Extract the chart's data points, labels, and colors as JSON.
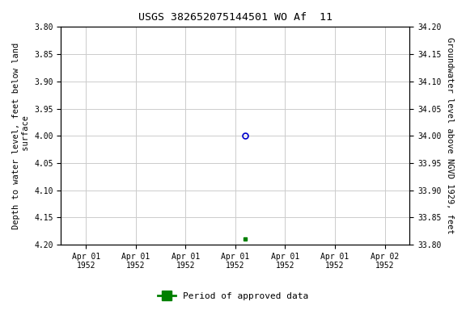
{
  "title": "USGS 382652075144501 WO Af  11",
  "ylabel_left": "Depth to water level, feet below land\n surface",
  "ylabel_right": "Groundwater level above NGVD 1929, feet",
  "ylim_left_top": 3.8,
  "ylim_left_bottom": 4.2,
  "ylim_right_top": 34.2,
  "ylim_right_bottom": 33.8,
  "yticks_left": [
    3.8,
    3.85,
    3.9,
    3.95,
    4.0,
    4.05,
    4.1,
    4.15,
    4.2
  ],
  "yticks_right": [
    34.2,
    34.15,
    34.1,
    34.05,
    34.0,
    33.95,
    33.9,
    33.85,
    33.8
  ],
  "x_tick_labels": [
    "Apr 01\n1952",
    "Apr 01\n1952",
    "Apr 01\n1952",
    "Apr 01\n1952",
    "Apr 01\n1952",
    "Apr 01\n1952",
    "Apr 02\n1952"
  ],
  "x_ticks": [
    0,
    1,
    2,
    3,
    4,
    5,
    6
  ],
  "xlim": [
    -0.5,
    6.5
  ],
  "x_data_blue": 3.2,
  "y_data_blue": 4.0,
  "x_data_green": 3.2,
  "y_data_green": 4.19,
  "background_color": "#ffffff",
  "grid_color": "#cccccc",
  "dot_color_blue": "#0000cc",
  "dot_color_green": "#008000",
  "legend_label": "Period of approved data",
  "legend_color": "#008000"
}
